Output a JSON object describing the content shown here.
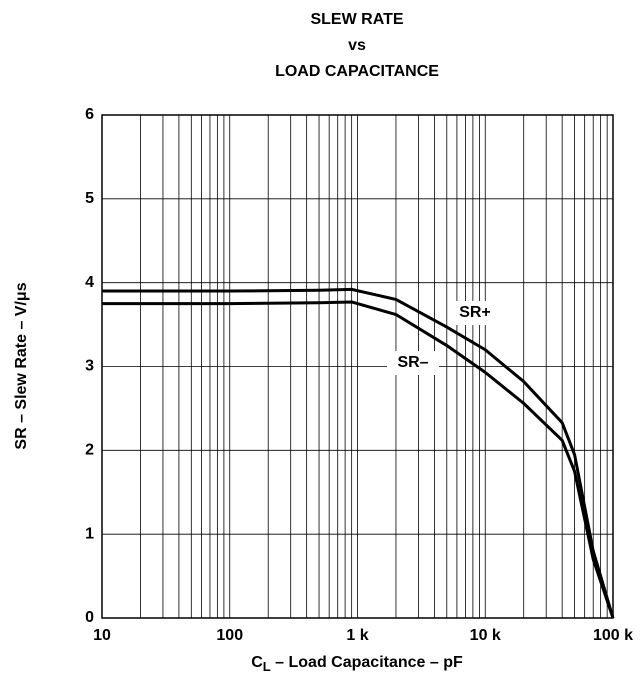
{
  "chart_data": {
    "type": "line",
    "title": [
      "SLEW RATE",
      "vs",
      "LOAD CAPACITANCE"
    ],
    "xlabel_parts": [
      "C",
      "L",
      " – Load Capacitance – pF"
    ],
    "ylabel": "SR – Slew Rate – V/μs",
    "xscale": "log",
    "xlim": [
      10,
      100000
    ],
    "xticks": [
      10,
      100,
      {
        "value": 1000,
        "label": "1 k"
      },
      {
        "value": 10000,
        "label": "10 k"
      },
      {
        "value": 100000,
        "label": "100 k"
      }
    ],
    "xminor": [
      20,
      30,
      40,
      50,
      60,
      70,
      80,
      90,
      200,
      300,
      400,
      500,
      600,
      700,
      800,
      900,
      2000,
      3000,
      4000,
      5000,
      6000,
      7000,
      8000,
      9000,
      20000,
      30000,
      40000,
      50000,
      60000,
      70000,
      80000,
      90000
    ],
    "ylim": [
      0,
      6
    ],
    "yticks": [
      0,
      1,
      2,
      3,
      4,
      5,
      6
    ],
    "grid": true,
    "x": [
      10,
      100,
      500,
      900,
      2000,
      5000,
      10000,
      20000,
      40000,
      50000,
      70000,
      100000
    ],
    "series": [
      {
        "name": "SR+",
        "color": "#000000",
        "values": [
          3.9,
          3.9,
          3.91,
          3.92,
          3.8,
          3.47,
          3.2,
          2.82,
          2.33,
          1.95,
          0.8,
          0
        ]
      },
      {
        "name": "SR–",
        "color": "#000000",
        "values": [
          3.75,
          3.75,
          3.76,
          3.77,
          3.62,
          3.25,
          2.93,
          2.56,
          2.12,
          1.75,
          0.7,
          0
        ]
      }
    ]
  }
}
